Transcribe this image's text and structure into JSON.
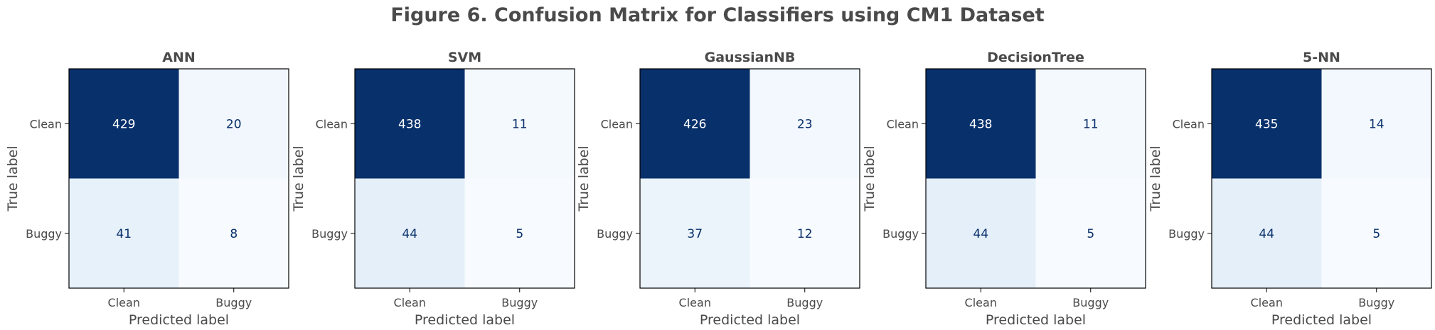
{
  "figure": {
    "title": "Figure 6. Confusion Matrix for Classifiers using CM1 Dataset"
  },
  "colors": {
    "text": "#4a4a4a",
    "cell_text_dark_bg": "#ffffff",
    "cell_text_light_bg": "#08306b",
    "colormap": "Blues"
  },
  "chart_data": [
    {
      "type": "heatmap",
      "title": "ANN",
      "xlabel": "Predicted label",
      "ylabel": "True label",
      "x_tick_labels": [
        "Clean",
        "Buggy"
      ],
      "y_tick_labels": [
        "Clean",
        "Buggy"
      ],
      "matrix": [
        [
          429,
          20
        ],
        [
          41,
          8
        ]
      ]
    },
    {
      "type": "heatmap",
      "title": "SVM",
      "xlabel": "Predicted label",
      "ylabel": "True label",
      "x_tick_labels": [
        "Clean",
        "Buggy"
      ],
      "y_tick_labels": [
        "Clean",
        "Buggy"
      ],
      "matrix": [
        [
          438,
          11
        ],
        [
          44,
          5
        ]
      ]
    },
    {
      "type": "heatmap",
      "title": "GaussianNB",
      "xlabel": "Predicted label",
      "ylabel": "True label",
      "x_tick_labels": [
        "Clean",
        "Buggy"
      ],
      "y_tick_labels": [
        "Clean",
        "Buggy"
      ],
      "matrix": [
        [
          426,
          23
        ],
        [
          37,
          12
        ]
      ]
    },
    {
      "type": "heatmap",
      "title": "DecisionTree",
      "xlabel": "Predicted label",
      "ylabel": "True label",
      "x_tick_labels": [
        "Clean",
        "Buggy"
      ],
      "y_tick_labels": [
        "Clean",
        "Buggy"
      ],
      "matrix": [
        [
          438,
          11
        ],
        [
          44,
          5
        ]
      ]
    },
    {
      "type": "heatmap",
      "title": "5-NN",
      "xlabel": "Predicted label",
      "ylabel": "True label",
      "x_tick_labels": [
        "Clean",
        "Buggy"
      ],
      "y_tick_labels": [
        "Clean",
        "Buggy"
      ],
      "matrix": [
        [
          435,
          14
        ],
        [
          44,
          5
        ]
      ]
    }
  ]
}
